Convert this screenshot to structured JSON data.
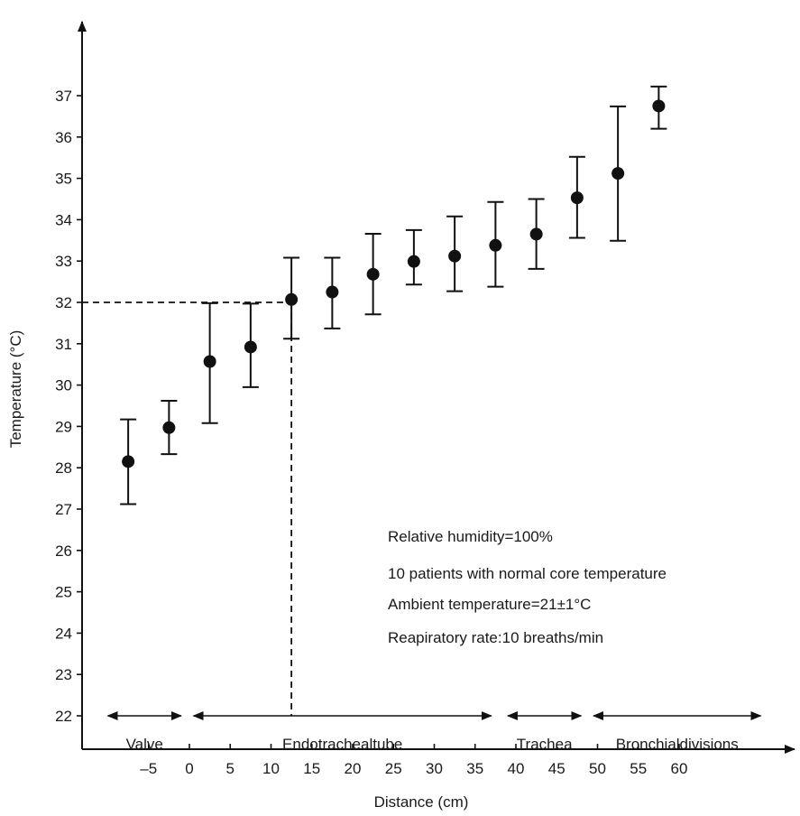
{
  "chart_data": {
    "type": "scatter",
    "xlabel": "Distance (cm)",
    "ylabel": "Temperature (°C)",
    "x_ticks": [
      "–5",
      "0",
      "5",
      "10",
      "15",
      "20",
      "25",
      "30",
      "35",
      "40",
      "45",
      "50",
      "55",
      "60"
    ],
    "y_ticks": [
      "22",
      "23",
      "24",
      "25",
      "26",
      "27",
      "28",
      "29",
      "30",
      "31",
      "32",
      "33",
      "34",
      "35",
      "36",
      "37"
    ],
    "ylim": [
      22,
      38
    ],
    "xlim": [
      -10,
      75
    ],
    "points": [
      {
        "x": -7.5,
        "y": 28.15,
        "lo": 27.12,
        "hi": 29.17
      },
      {
        "x": -2.5,
        "y": 28.97,
        "lo": 28.33,
        "hi": 29.62
      },
      {
        "x": 2.5,
        "y": 30.57,
        "lo": 29.08,
        "hi": 31.98
      },
      {
        "x": 7.5,
        "y": 30.92,
        "lo": 29.95,
        "hi": 31.97
      },
      {
        "x": 12.5,
        "y": 32.07,
        "lo": 31.12,
        "hi": 33.08
      },
      {
        "x": 17.5,
        "y": 32.25,
        "lo": 31.37,
        "hi": 33.08
      },
      {
        "x": 22.5,
        "y": 32.68,
        "lo": 31.71,
        "hi": 33.66
      },
      {
        "x": 27.5,
        "y": 32.99,
        "lo": 32.43,
        "hi": 33.75
      },
      {
        "x": 32.5,
        "y": 33.12,
        "lo": 32.27,
        "hi": 34.08
      },
      {
        "x": 37.5,
        "y": 33.38,
        "lo": 32.38,
        "hi": 34.43
      },
      {
        "x": 42.5,
        "y": 33.65,
        "lo": 32.81,
        "hi": 34.5
      },
      {
        "x": 47.5,
        "y": 34.53,
        "lo": 33.56,
        "hi": 35.52
      },
      {
        "x": 52.5,
        "y": 35.12,
        "lo": 33.49,
        "hi": 36.74
      },
      {
        "x": 57.5,
        "y": 36.75,
        "lo": 36.2,
        "hi": 37.22
      }
    ],
    "reference": {
      "x": 12.5,
      "y": 32
    },
    "annotations": [
      "Relative humidity=100%",
      "10 patients with normal core temperature",
      "Ambient temperature=21±1°C",
      "Reapiratory rate:10 breaths/min"
    ],
    "regions": [
      {
        "label": "Valve",
        "x_start": -10,
        "x_end": -1
      },
      {
        "label": "Endotrachealtube",
        "x_start": 0.5,
        "x_end": 37
      },
      {
        "label": "Trachea",
        "x_start": 39,
        "x_end": 48
      },
      {
        "label": "Bronchialdivisions",
        "x_start": 49.5,
        "x_end": 70
      }
    ]
  }
}
